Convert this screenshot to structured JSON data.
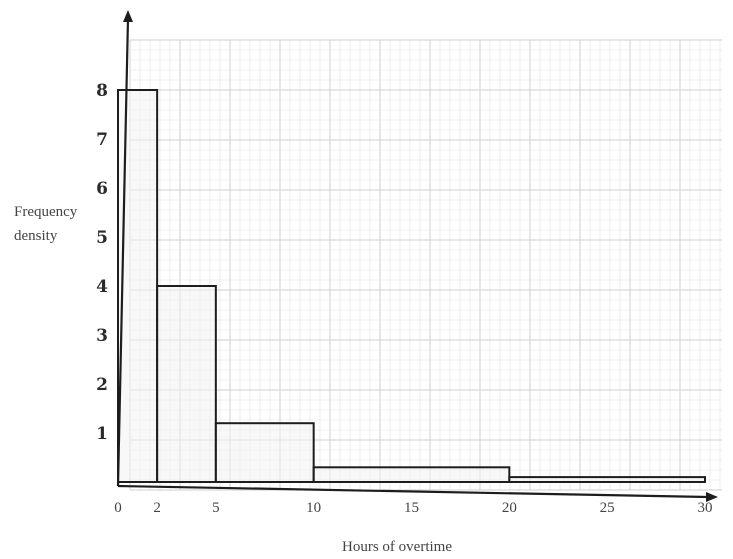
{
  "chart_data": {
    "type": "bar",
    "subtype": "histogram",
    "xlabel": "Hours of overtime",
    "ylabel_lines": [
      "Frequency",
      "density"
    ],
    "x_ticks": [
      0,
      2,
      5,
      10,
      15,
      20,
      25,
      30
    ],
    "y_ticks": [
      1,
      2,
      3,
      4,
      5,
      6,
      7,
      8
    ],
    "xlim": [
      0,
      30
    ],
    "ylim": [
      0,
      8
    ],
    "grid": true,
    "bins": [
      {
        "start": 0,
        "end": 2,
        "density": 8
      },
      {
        "start": 2,
        "end": 5,
        "density": 4
      },
      {
        "start": 5,
        "end": 10,
        "density": 1.2
      },
      {
        "start": 10,
        "end": 20,
        "density": 0.3
      },
      {
        "start": 20,
        "end": 30,
        "density": 0.1
      }
    ]
  }
}
